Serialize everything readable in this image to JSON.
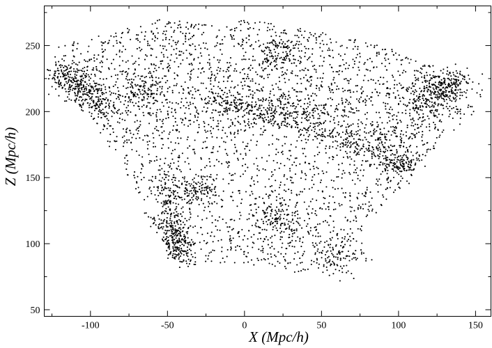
{
  "chart_data": {
    "type": "scatter",
    "title": "",
    "xlabel": "X (Mpc/h)",
    "ylabel": "Z (Mpc/h)",
    "xlim": [
      -130,
      160
    ],
    "ylim": [
      45,
      280
    ],
    "xticks": [
      -100,
      -50,
      0,
      50,
      100,
      150
    ],
    "yticks": [
      50,
      100,
      150,
      200,
      250
    ],
    "grid": false,
    "legend": "none",
    "marker_color": "#000000",
    "point_count": 5200,
    "structures": [
      {
        "x": 0,
        "z": 208,
        "sx": 18,
        "sz": 6
      },
      {
        "x": 35,
        "z": 200,
        "sx": 22,
        "sz": 5
      },
      {
        "x": 82,
        "z": 178,
        "sx": 14,
        "sz": 7
      },
      {
        "x": -33,
        "z": 140,
        "sx": 7,
        "sz": 6
      },
      {
        "x": 128,
        "z": 218,
        "sx": 8,
        "sz": 7
      },
      {
        "x": -110,
        "z": 225,
        "sx": 9,
        "sz": 8
      },
      {
        "x": 22,
        "z": 245,
        "sx": 8,
        "sz": 8
      },
      {
        "x": -45,
        "z": 105,
        "sx": 5,
        "sz": 8
      },
      {
        "x": 22,
        "z": 118,
        "sx": 7,
        "sz": 8
      },
      {
        "x": 60,
        "z": 90,
        "sx": 9,
        "sz": 7
      },
      {
        "x": -65,
        "z": 215,
        "sx": 8,
        "sz": 7
      },
      {
        "x": 100,
        "z": 160,
        "sx": 8,
        "sz": 5
      }
    ],
    "filaments": [
      {
        "x0": -25,
        "z0": 215,
        "x1": 110,
        "z1": 158,
        "width": 4
      },
      {
        "x0": -118,
        "z0": 230,
        "x1": -88,
        "z1": 200,
        "width": 6
      },
      {
        "x0": 110,
        "z0": 200,
        "x1": 140,
        "z1": 225,
        "width": 6
      },
      {
        "x0": -55,
        "z0": 150,
        "x1": -40,
        "z1": 88,
        "width": 5
      }
    ]
  }
}
